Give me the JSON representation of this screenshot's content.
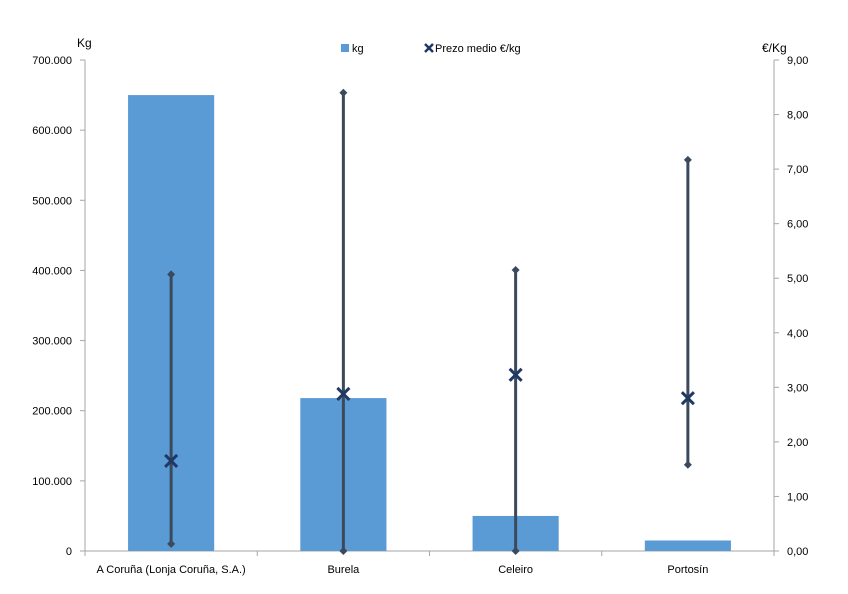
{
  "chart_data": {
    "type": "bar",
    "title": "",
    "xlabel": "",
    "ylabel": "Kg",
    "y2label": "€/Kg",
    "ylim": [
      0,
      700000
    ],
    "y2lim": [
      0,
      9
    ],
    "y_ticks": [
      "0",
      "100.000",
      "200.000",
      "300.000",
      "400.000",
      "500.000",
      "600.000",
      "700.000"
    ],
    "y2_ticks": [
      "0,00",
      "1,00",
      "2,00",
      "3,00",
      "4,00",
      "5,00",
      "6,00",
      "7,00",
      "8,00",
      "9,00"
    ],
    "categories": [
      "A Coruña (Lonja Coruña, S.A.)",
      "Burela",
      "Celeiro",
      "Portosín"
    ],
    "series": [
      {
        "name": "kg",
        "type": "bar",
        "axis": "left",
        "color": "#5B9BD5",
        "values": [
          650000,
          218000,
          50000,
          15000
        ]
      },
      {
        "name": "Prezo medio €/kg",
        "type": "marker",
        "axis": "right",
        "color": "#1F3864",
        "values": [
          1.65,
          2.88,
          3.23,
          2.8
        ]
      }
    ],
    "ranges": {
      "axis": "right",
      "color": "#3A4A5C",
      "min": [
        0.13,
        0.0,
        0.0,
        1.58
      ],
      "max": [
        5.07,
        8.4,
        5.15,
        7.17
      ]
    },
    "legend": "top-center",
    "grid": false
  }
}
